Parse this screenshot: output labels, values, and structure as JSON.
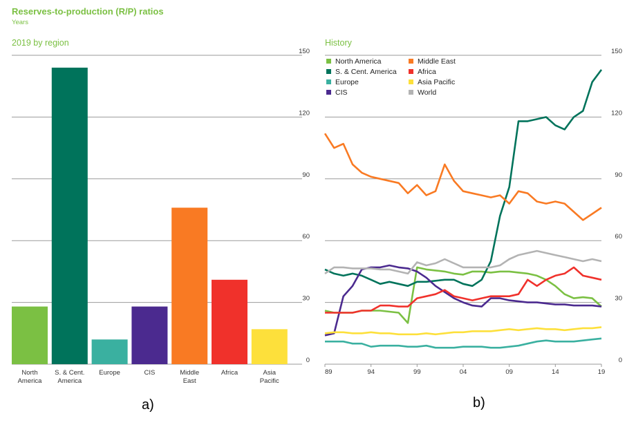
{
  "header": {
    "title": "Reserves-to-production (R/P) ratios",
    "subtitle": "Years"
  },
  "captions": {
    "left": "a)",
    "right": "b)"
  },
  "chart_data": [
    {
      "type": "bar",
      "title": "2019 by region",
      "categories": [
        [
          "North",
          "America"
        ],
        [
          "S. & Cent.",
          "America"
        ],
        [
          "Europe"
        ],
        [
          "CIS"
        ],
        [
          "Middle",
          "East"
        ],
        [
          "Africa"
        ],
        [
          "Asia",
          "Pacific"
        ]
      ],
      "values": [
        28,
        144,
        12,
        28,
        76,
        41,
        17
      ],
      "colors": [
        "#7bc043",
        "#00735b",
        "#3ab0a0",
        "#4b2a8f",
        "#f97a23",
        "#f0312b",
        "#fde03b"
      ],
      "ylim": [
        0,
        150
      ],
      "yticks": [
        0,
        30,
        60,
        90,
        120,
        150
      ],
      "grid": true
    },
    {
      "type": "line",
      "title": "History",
      "x": [
        1989,
        1990,
        1991,
        1992,
        1993,
        1994,
        1995,
        1996,
        1997,
        1998,
        1999,
        2000,
        2001,
        2002,
        2003,
        2004,
        2005,
        2006,
        2007,
        2008,
        2009,
        2010,
        2011,
        2012,
        2013,
        2014,
        2015,
        2016,
        2017,
        2018,
        2019
      ],
      "xticks": [
        {
          "v": 1989,
          "label": "89"
        },
        {
          "v": 1994,
          "label": "94"
        },
        {
          "v": 1999,
          "label": "99"
        },
        {
          "v": 2004,
          "label": "04"
        },
        {
          "v": 2009,
          "label": "09"
        },
        {
          "v": 2014,
          "label": "14"
        },
        {
          "v": 2019,
          "label": "19"
        }
      ],
      "xlim": [
        1989,
        2019
      ],
      "ylim": [
        0,
        150
      ],
      "yticks": [
        0,
        30,
        60,
        90,
        120,
        150
      ],
      "grid": true,
      "legend": {
        "position": "top-left",
        "columns": 2
      },
      "series": [
        {
          "name": "North America",
          "color": "#7bc043",
          "values": [
            26,
            25,
            25,
            25,
            26,
            26,
            26,
            25.5,
            25,
            20,
            47,
            46,
            45.5,
            45,
            44,
            43.5,
            45,
            45,
            44.5,
            45,
            45,
            44.5,
            44,
            43,
            41,
            38,
            34,
            32,
            32.5,
            32,
            28
          ]
        },
        {
          "name": "S. & Cent. America",
          "color": "#00735b",
          "values": [
            46,
            44,
            43,
            44,
            43,
            41,
            39,
            40,
            39,
            38,
            40,
            40,
            40.5,
            41,
            41,
            39,
            38,
            41,
            50,
            72,
            86,
            118,
            118,
            119,
            120,
            116,
            114,
            120,
            123,
            137,
            143
          ]
        },
        {
          "name": "Europe",
          "color": "#3ab0a0",
          "values": [
            11,
            11,
            11,
            10,
            10,
            8.5,
            9,
            9,
            9,
            8.5,
            8.5,
            9,
            8,
            8,
            8,
            8.5,
            8.5,
            8.5,
            8,
            8,
            8.5,
            9,
            10,
            11,
            11.5,
            11,
            11,
            11,
            11.5,
            12,
            12.5
          ]
        },
        {
          "name": "CIS",
          "color": "#4b2a8f",
          "values": [
            14,
            15,
            33,
            38,
            46,
            47,
            47,
            48,
            47,
            46.5,
            45,
            42,
            38,
            35,
            32,
            30,
            28.5,
            28,
            32,
            32,
            31,
            30.5,
            30,
            30,
            29.5,
            29,
            29,
            28.5,
            28.5,
            28.5,
            28
          ]
        },
        {
          "name": "Middle East",
          "color": "#f97a23",
          "values": [
            112,
            105,
            107,
            97,
            93,
            91,
            90,
            89,
            88,
            83,
            87,
            82,
            84,
            97,
            89,
            84,
            83,
            82,
            81,
            82,
            78,
            84,
            83,
            79,
            78,
            79,
            78,
            74,
            70,
            73,
            76
          ]
        },
        {
          "name": "Africa",
          "color": "#f0312b",
          "values": [
            25,
            25,
            25,
            25,
            26,
            26,
            28.5,
            28.5,
            28,
            28,
            32,
            33,
            34,
            36,
            33,
            32,
            31,
            32,
            33,
            33,
            33,
            34,
            41,
            38,
            41,
            43,
            44,
            47,
            43,
            42,
            41
          ]
        },
        {
          "name": "Asia Pacific",
          "color": "#fde03b",
          "values": [
            15,
            15.5,
            15.5,
            15,
            15,
            15.5,
            15,
            15,
            14.5,
            14.5,
            14.5,
            15,
            14.5,
            15,
            15.5,
            15.5,
            16,
            16,
            16,
            16.5,
            17,
            16.5,
            17,
            17.5,
            17,
            17,
            16.5,
            17,
            17.5,
            17.5,
            18
          ]
        },
        {
          "name": "World",
          "color": "#b3b3b3",
          "values": [
            44,
            47,
            47,
            46.5,
            46.5,
            46.5,
            46,
            46,
            45,
            44,
            49.5,
            48,
            49,
            51,
            49,
            47,
            47,
            47,
            47,
            48,
            51,
            53,
            54,
            55,
            54,
            53,
            52,
            51,
            50,
            51,
            50
          ]
        }
      ]
    }
  ]
}
